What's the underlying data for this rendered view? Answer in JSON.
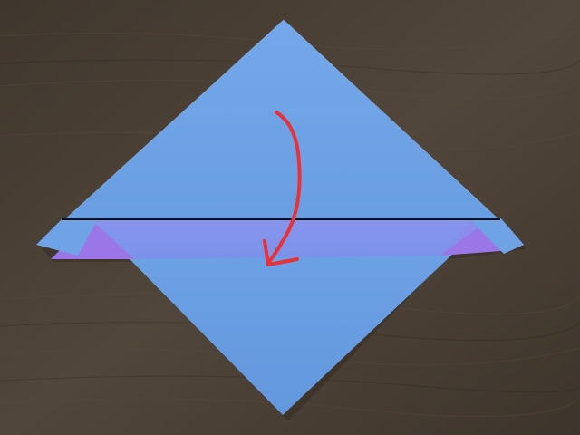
{
  "scene": {
    "subject": "origami-fold-step",
    "table_color": "#4a4036",
    "paper_color": "#6fa3e6",
    "paper_back_color": "#9b7be6",
    "fold_line_color": "#111111",
    "arrow_color": "#e8323a"
  }
}
